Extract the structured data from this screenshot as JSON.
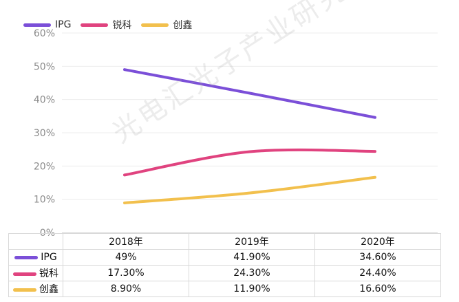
{
  "chart_data": {
    "type": "line",
    "categories": [
      "2018年",
      "2019年",
      "2020年"
    ],
    "series": [
      {
        "name": "IPG",
        "color": "#7b4fd8",
        "values": [
          49,
          41.9,
          34.6
        ],
        "labels": [
          "49%",
          "41.90%",
          "34.60%"
        ]
      },
      {
        "name": "锐科",
        "color": "#e0437f",
        "values": [
          17.3,
          24.3,
          24.4
        ],
        "labels": [
          "17.30%",
          "24.30%",
          "24.40%"
        ]
      },
      {
        "name": "创鑫",
        "color": "#f2c04d",
        "values": [
          8.9,
          11.9,
          16.6
        ],
        "labels": [
          "8.90%",
          "11.90%",
          "16.60%"
        ]
      }
    ],
    "yticks": [
      "0%",
      "10%",
      "20%",
      "30%",
      "40%",
      "50%",
      "60%"
    ],
    "ylim": [
      0,
      60
    ],
    "grid": true,
    "legend": "top-left",
    "watermark": "光电汇光子产业研究中心"
  }
}
